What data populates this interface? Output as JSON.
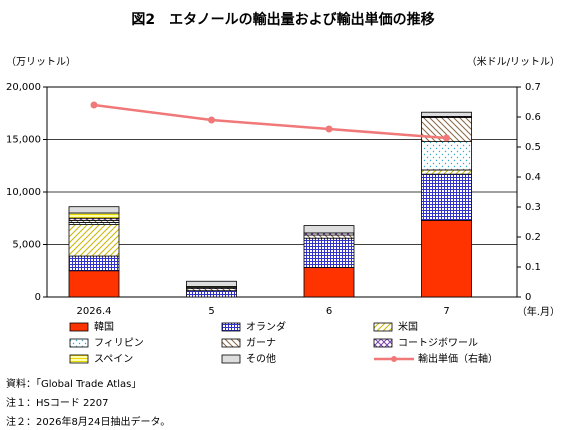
{
  "chart_data": {
    "type": "bar",
    "title": "図2　エタノールの輸出量および輸出単価の推移",
    "y_label": "（万リットル）",
    "y2_label": "（米ドル/リットル）",
    "x_label": "（年.月）",
    "categories": [
      "2026.4",
      "5",
      "6",
      "7"
    ],
    "stacked": true,
    "ylim": [
      0,
      20000
    ],
    "yticks": [
      0,
      {
        "value": 5000,
        "label": "5,000"
      },
      {
        "value": 10000,
        "label": "10,000"
      },
      {
        "value": 15000,
        "label": "15,000"
      },
      {
        "value": 20000,
        "label": "20,000"
      }
    ],
    "y2lim": [
      0,
      0.7
    ],
    "y2ticks": [
      0,
      0.1,
      0.2,
      0.3,
      0.4,
      0.5,
      0.6,
      0.7
    ],
    "series": [
      {
        "name": "韓国",
        "color": "#ff3300",
        "values": [
          2500,
          0,
          2800,
          7300
        ]
      },
      {
        "name": "オランダ",
        "color": "#3333cc",
        "values": [
          1400,
          600,
          2800,
          4400
        ]
      },
      {
        "name": "米国",
        "color": "#c8b400",
        "values": [
          3000,
          0,
          0,
          400
        ]
      },
      {
        "name": "フィリピン",
        "color": "#33aacc",
        "values": [
          200,
          0,
          0,
          2700
        ]
      },
      {
        "name": "ガーナ",
        "color": "#886644",
        "values": [
          200,
          200,
          300,
          2300
        ]
      },
      {
        "name": "コートジボワール",
        "color": "#7744aa",
        "values": [
          200,
          100,
          200,
          100
        ]
      },
      {
        "name": "スペイン",
        "color": "#e8d800",
        "values": [
          500,
          100,
          0,
          0
        ]
      },
      {
        "name": "その他",
        "color": "#dddddd",
        "values": [
          600,
          500,
          700,
          400
        ]
      },
      {
        "name": "輸出単価（右軸）",
        "type": "line",
        "axis": "y2",
        "color": "#f07878",
        "values": [
          0.64,
          0.59,
          0.56,
          0.53
        ]
      }
    ],
    "notes": [
      "資料：「Global Trade Atlas」",
      "注１：HSコード 2207",
      "注２：2026年8月24日抽出データ。"
    ]
  }
}
